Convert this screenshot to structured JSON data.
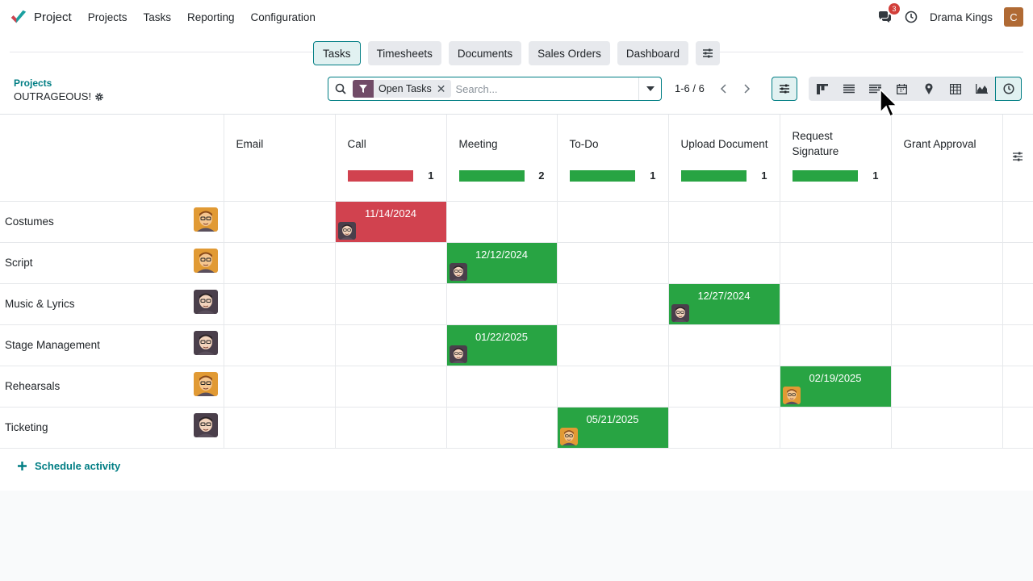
{
  "app": {
    "name": "Project"
  },
  "nav": {
    "menu": [
      "Projects",
      "Tasks",
      "Reporting",
      "Configuration"
    ],
    "message_count": "3",
    "company": "Drama Kings",
    "user_initial": "C"
  },
  "subnav": {
    "tabs": [
      "Tasks",
      "Timesheets",
      "Documents",
      "Sales Orders",
      "Dashboard"
    ],
    "active_tab": "Tasks"
  },
  "breadcrumb": {
    "parent": "Projects",
    "current": "OUTRAGEOUS!"
  },
  "search": {
    "facet": "Open Tasks",
    "placeholder": "Search..."
  },
  "pager": {
    "value": "1-6 / 6"
  },
  "views": [
    "kanban",
    "list",
    "activity",
    "calendar",
    "map",
    "pivot",
    "graph",
    "activity-clock"
  ],
  "activity_types": [
    {
      "name": "Email",
      "count": "",
      "bar": ""
    },
    {
      "name": "Call",
      "count": "1",
      "bar": "#d1424f"
    },
    {
      "name": "Meeting",
      "count": "2",
      "bar": "#28a443"
    },
    {
      "name": "To-Do",
      "count": "1",
      "bar": "#28a443"
    },
    {
      "name": "Upload Document",
      "count": "1",
      "bar": "#28a443"
    },
    {
      "name": "Request Signature",
      "count": "1",
      "bar": "#28a443"
    },
    {
      "name": "Grant Approval",
      "count": "",
      "bar": ""
    }
  ],
  "rows": [
    {
      "name": "Costumes",
      "avatar": "orange",
      "activity": {
        "col": 1,
        "date": "11/14/2024",
        "color": "#d1424f",
        "avatar": "dark"
      }
    },
    {
      "name": "Script",
      "avatar": "orange",
      "activity": {
        "col": 2,
        "date": "12/12/2024",
        "color": "#28a443",
        "avatar": "dark"
      }
    },
    {
      "name": "Music & Lyrics",
      "avatar": "dark",
      "activity": {
        "col": 4,
        "date": "12/27/2024",
        "color": "#28a443",
        "avatar": "dark"
      }
    },
    {
      "name": "Stage Management",
      "avatar": "dark",
      "activity": {
        "col": 2,
        "date": "01/22/2025",
        "color": "#28a443",
        "avatar": "dark"
      }
    },
    {
      "name": "Rehearsals",
      "avatar": "orange",
      "activity": {
        "col": 5,
        "date": "02/19/2025",
        "color": "#28a443",
        "avatar": "orange"
      }
    },
    {
      "name": "Ticketing",
      "avatar": "dark",
      "activity": {
        "col": 3,
        "date": "05/21/2025",
        "color": "#28a443",
        "avatar": "orange"
      }
    }
  ],
  "footer": {
    "schedule_label": "Schedule activity"
  },
  "colors": {
    "accent": "#017e84",
    "brand": "#714b67",
    "overdue": "#d1424f",
    "planned": "#28a443"
  }
}
